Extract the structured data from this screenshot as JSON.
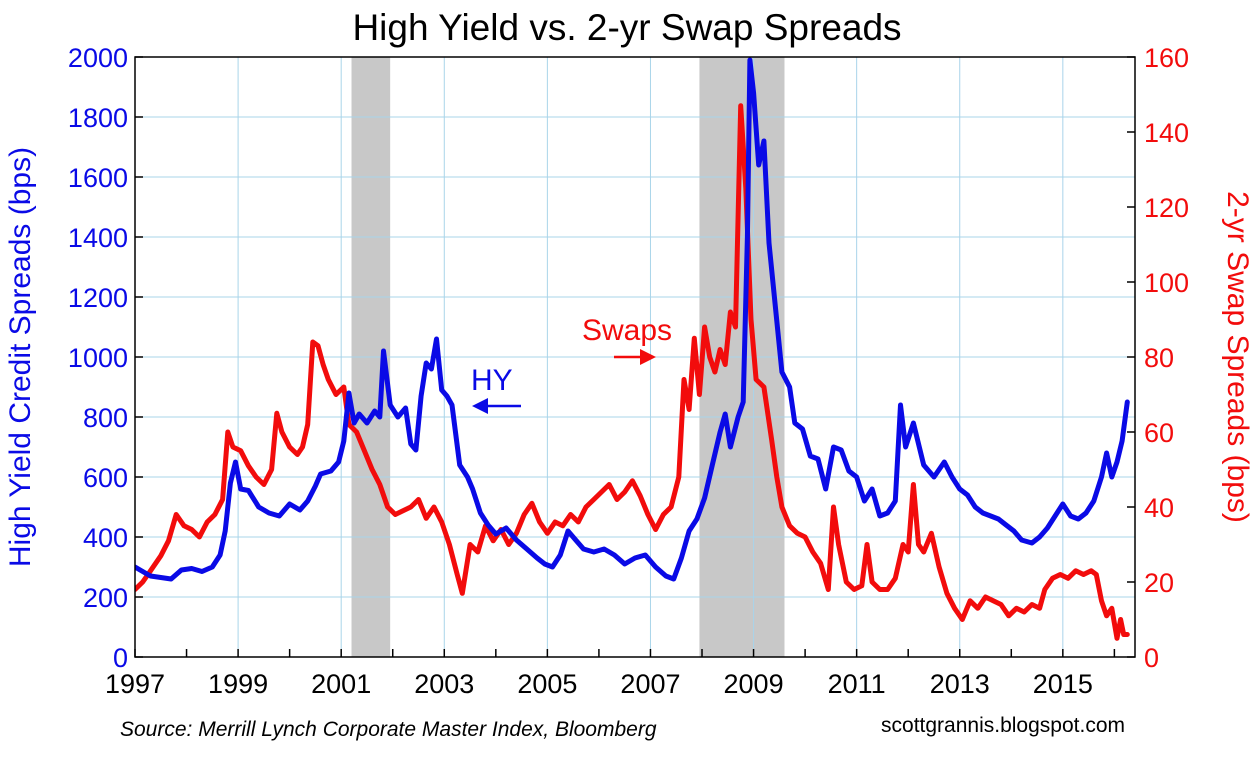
{
  "chart_data": {
    "type": "line",
    "title": "High Yield vs. 2-yr Swap Spreads",
    "y_left_label": "High Yield Credit Spreads (bps)",
    "y_right_label": "2-yr Swap Spreads (bps)",
    "y_left_range": [
      0,
      2000
    ],
    "y_right_range": [
      0,
      160
    ],
    "y_left_ticks": [
      "0",
      "200",
      "400",
      "600",
      "800",
      "1000",
      "1200",
      "1400",
      "1600",
      "1800",
      "2000"
    ],
    "y_right_ticks": [
      "0",
      "20",
      "40",
      "60",
      "80",
      "100",
      "120",
      "140",
      "160"
    ],
    "x_range": [
      1997,
      2016.4
    ],
    "x_ticks": [
      "1997",
      "1999",
      "2001",
      "2003",
      "2005",
      "2007",
      "2009",
      "2011",
      "2013",
      "2015"
    ],
    "grid": true,
    "recessions": [
      [
        2001.2,
        2001.95
      ],
      [
        2007.95,
        2009.6
      ]
    ],
    "series": [
      {
        "name": "HY",
        "axis": "left",
        "color": "#0a0ae6",
        "points": [
          [
            1997.0,
            300
          ],
          [
            1997.15,
            285
          ],
          [
            1997.3,
            270
          ],
          [
            1997.5,
            265
          ],
          [
            1997.7,
            260
          ],
          [
            1997.9,
            290
          ],
          [
            1998.1,
            295
          ],
          [
            1998.3,
            285
          ],
          [
            1998.5,
            300
          ],
          [
            1998.65,
            340
          ],
          [
            1998.75,
            420
          ],
          [
            1998.85,
            580
          ],
          [
            1998.95,
            650
          ],
          [
            1999.05,
            560
          ],
          [
            1999.2,
            555
          ],
          [
            1999.4,
            500
          ],
          [
            1999.6,
            480
          ],
          [
            1999.8,
            470
          ],
          [
            2000.0,
            510
          ],
          [
            2000.2,
            490
          ],
          [
            2000.35,
            520
          ],
          [
            2000.5,
            570
          ],
          [
            2000.6,
            610
          ],
          [
            2000.8,
            620
          ],
          [
            2000.95,
            650
          ],
          [
            2001.05,
            720
          ],
          [
            2001.15,
            880
          ],
          [
            2001.25,
            780
          ],
          [
            2001.35,
            810
          ],
          [
            2001.5,
            780
          ],
          [
            2001.65,
            820
          ],
          [
            2001.75,
            800
          ],
          [
            2001.82,
            1020
          ],
          [
            2001.95,
            840
          ],
          [
            2002.1,
            800
          ],
          [
            2002.25,
            830
          ],
          [
            2002.35,
            710
          ],
          [
            2002.45,
            690
          ],
          [
            2002.55,
            870
          ],
          [
            2002.65,
            980
          ],
          [
            2002.75,
            960
          ],
          [
            2002.85,
            1060
          ],
          [
            2002.95,
            890
          ],
          [
            2003.05,
            870
          ],
          [
            2003.15,
            840
          ],
          [
            2003.3,
            640
          ],
          [
            2003.45,
            600
          ],
          [
            2003.55,
            560
          ],
          [
            2003.7,
            480
          ],
          [
            2003.85,
            440
          ],
          [
            2004.0,
            410
          ],
          [
            2004.2,
            430
          ],
          [
            2004.4,
            390
          ],
          [
            2004.6,
            360
          ],
          [
            2004.8,
            330
          ],
          [
            2004.95,
            310
          ],
          [
            2005.1,
            300
          ],
          [
            2005.25,
            340
          ],
          [
            2005.4,
            420
          ],
          [
            2005.55,
            390
          ],
          [
            2005.7,
            360
          ],
          [
            2005.9,
            350
          ],
          [
            2006.1,
            360
          ],
          [
            2006.3,
            340
          ],
          [
            2006.5,
            310
          ],
          [
            2006.7,
            330
          ],
          [
            2006.9,
            340
          ],
          [
            2007.1,
            300
          ],
          [
            2007.3,
            270
          ],
          [
            2007.45,
            260
          ],
          [
            2007.6,
            330
          ],
          [
            2007.75,
            420
          ],
          [
            2007.9,
            460
          ],
          [
            2008.05,
            530
          ],
          [
            2008.2,
            640
          ],
          [
            2008.35,
            750
          ],
          [
            2008.45,
            810
          ],
          [
            2008.55,
            700
          ],
          [
            2008.7,
            800
          ],
          [
            2008.8,
            850
          ],
          [
            2008.88,
            1400
          ],
          [
            2008.93,
            1990
          ],
          [
            2009.0,
            1880
          ],
          [
            2009.1,
            1640
          ],
          [
            2009.2,
            1720
          ],
          [
            2009.3,
            1380
          ],
          [
            2009.45,
            1120
          ],
          [
            2009.55,
            950
          ],
          [
            2009.7,
            900
          ],
          [
            2009.8,
            780
          ],
          [
            2009.95,
            760
          ],
          [
            2010.1,
            670
          ],
          [
            2010.25,
            660
          ],
          [
            2010.4,
            560
          ],
          [
            2010.55,
            700
          ],
          [
            2010.7,
            690
          ],
          [
            2010.85,
            620
          ],
          [
            2011.0,
            600
          ],
          [
            2011.15,
            520
          ],
          [
            2011.3,
            560
          ],
          [
            2011.45,
            470
          ],
          [
            2011.6,
            480
          ],
          [
            2011.75,
            520
          ],
          [
            2011.85,
            840
          ],
          [
            2011.95,
            700
          ],
          [
            2012.1,
            780
          ],
          [
            2012.3,
            640
          ],
          [
            2012.5,
            600
          ],
          [
            2012.7,
            650
          ],
          [
            2012.85,
            600
          ],
          [
            2013.0,
            560
          ],
          [
            2013.15,
            540
          ],
          [
            2013.3,
            500
          ],
          [
            2013.45,
            480
          ],
          [
            2013.6,
            470
          ],
          [
            2013.75,
            460
          ],
          [
            2013.9,
            440
          ],
          [
            2014.05,
            420
          ],
          [
            2014.2,
            390
          ],
          [
            2014.4,
            380
          ],
          [
            2014.55,
            400
          ],
          [
            2014.7,
            430
          ],
          [
            2014.85,
            470
          ],
          [
            2015.0,
            510
          ],
          [
            2015.15,
            470
          ],
          [
            2015.3,
            460
          ],
          [
            2015.45,
            480
          ],
          [
            2015.6,
            520
          ],
          [
            2015.75,
            600
          ],
          [
            2015.85,
            680
          ],
          [
            2015.95,
            600
          ],
          [
            2016.05,
            650
          ],
          [
            2016.15,
            720
          ],
          [
            2016.25,
            850
          ]
        ]
      },
      {
        "name": "Swaps",
        "axis": "right",
        "color": "#f20c0c",
        "points": [
          [
            1997.0,
            18
          ],
          [
            1997.15,
            20
          ],
          [
            1997.3,
            23
          ],
          [
            1997.5,
            27
          ],
          [
            1997.65,
            31
          ],
          [
            1997.8,
            38
          ],
          [
            1997.95,
            35
          ],
          [
            1998.1,
            34
          ],
          [
            1998.25,
            32
          ],
          [
            1998.4,
            36
          ],
          [
            1998.55,
            38
          ],
          [
            1998.7,
            42
          ],
          [
            1998.8,
            60
          ],
          [
            1998.9,
            56
          ],
          [
            1999.05,
            55
          ],
          [
            1999.2,
            51
          ],
          [
            1999.35,
            48
          ],
          [
            1999.5,
            46
          ],
          [
            1999.65,
            50
          ],
          [
            1999.75,
            65
          ],
          [
            1999.85,
            60
          ],
          [
            2000.0,
            56
          ],
          [
            2000.15,
            54
          ],
          [
            2000.25,
            56
          ],
          [
            2000.35,
            62
          ],
          [
            2000.45,
            84
          ],
          [
            2000.55,
            83
          ],
          [
            2000.65,
            78
          ],
          [
            2000.75,
            74
          ],
          [
            2000.9,
            70
          ],
          [
            2001.05,
            72
          ],
          [
            2001.15,
            62
          ],
          [
            2001.3,
            60
          ],
          [
            2001.45,
            55
          ],
          [
            2001.6,
            50
          ],
          [
            2001.75,
            46
          ],
          [
            2001.9,
            40
          ],
          [
            2002.05,
            38
          ],
          [
            2002.2,
            39
          ],
          [
            2002.35,
            40
          ],
          [
            2002.5,
            42
          ],
          [
            2002.65,
            37
          ],
          [
            2002.8,
            40
          ],
          [
            2002.95,
            36
          ],
          [
            2003.1,
            30
          ],
          [
            2003.25,
            22
          ],
          [
            2003.35,
            17
          ],
          [
            2003.5,
            30
          ],
          [
            2003.65,
            28
          ],
          [
            2003.8,
            35
          ],
          [
            2003.95,
            31
          ],
          [
            2004.1,
            34
          ],
          [
            2004.25,
            30
          ],
          [
            2004.4,
            33
          ],
          [
            2004.55,
            38
          ],
          [
            2004.7,
            41
          ],
          [
            2004.85,
            36
          ],
          [
            2005.0,
            33
          ],
          [
            2005.15,
            36
          ],
          [
            2005.3,
            35
          ],
          [
            2005.45,
            38
          ],
          [
            2005.6,
            36
          ],
          [
            2005.75,
            40
          ],
          [
            2005.9,
            42
          ],
          [
            2006.05,
            44
          ],
          [
            2006.2,
            46
          ],
          [
            2006.35,
            42
          ],
          [
            2006.5,
            44
          ],
          [
            2006.65,
            47
          ],
          [
            2006.8,
            43
          ],
          [
            2006.95,
            38
          ],
          [
            2007.1,
            34
          ],
          [
            2007.25,
            38
          ],
          [
            2007.4,
            40
          ],
          [
            2007.55,
            48
          ],
          [
            2007.65,
            74
          ],
          [
            2007.75,
            66
          ],
          [
            2007.85,
            85
          ],
          [
            2007.95,
            70
          ],
          [
            2008.05,
            88
          ],
          [
            2008.15,
            80
          ],
          [
            2008.25,
            76
          ],
          [
            2008.35,
            82
          ],
          [
            2008.45,
            78
          ],
          [
            2008.55,
            92
          ],
          [
            2008.65,
            88
          ],
          [
            2008.75,
            147
          ],
          [
            2008.85,
            125
          ],
          [
            2008.95,
            90
          ],
          [
            2009.05,
            74
          ],
          [
            2009.2,
            72
          ],
          [
            2009.35,
            58
          ],
          [
            2009.45,
            48
          ],
          [
            2009.55,
            40
          ],
          [
            2009.7,
            35
          ],
          [
            2009.85,
            33
          ],
          [
            2010.0,
            32
          ],
          [
            2010.15,
            28
          ],
          [
            2010.3,
            25
          ],
          [
            2010.45,
            18
          ],
          [
            2010.55,
            40
          ],
          [
            2010.65,
            30
          ],
          [
            2010.8,
            20
          ],
          [
            2010.95,
            18
          ],
          [
            2011.1,
            19
          ],
          [
            2011.2,
            30
          ],
          [
            2011.3,
            20
          ],
          [
            2011.45,
            18
          ],
          [
            2011.6,
            18
          ],
          [
            2011.75,
            21
          ],
          [
            2011.9,
            30
          ],
          [
            2012.0,
            28
          ],
          [
            2012.1,
            46
          ],
          [
            2012.2,
            30
          ],
          [
            2012.3,
            28
          ],
          [
            2012.45,
            33
          ],
          [
            2012.6,
            24
          ],
          [
            2012.75,
            17
          ],
          [
            2012.9,
            13
          ],
          [
            2013.05,
            10
          ],
          [
            2013.2,
            15
          ],
          [
            2013.35,
            13
          ],
          [
            2013.5,
            16
          ],
          [
            2013.65,
            15
          ],
          [
            2013.8,
            14
          ],
          [
            2013.95,
            11
          ],
          [
            2014.1,
            13
          ],
          [
            2014.25,
            12
          ],
          [
            2014.4,
            14
          ],
          [
            2014.55,
            13
          ],
          [
            2014.65,
            18
          ],
          [
            2014.8,
            21
          ],
          [
            2014.95,
            22
          ],
          [
            2015.1,
            21
          ],
          [
            2015.25,
            23
          ],
          [
            2015.4,
            22
          ],
          [
            2015.55,
            23
          ],
          [
            2015.65,
            22
          ],
          [
            2015.75,
            15
          ],
          [
            2015.85,
            11
          ],
          [
            2015.95,
            13
          ],
          [
            2016.0,
            9
          ],
          [
            2016.05,
            5
          ],
          [
            2016.12,
            10
          ],
          [
            2016.18,
            6
          ],
          [
            2016.25,
            6
          ]
        ]
      }
    ],
    "annotations": [
      {
        "text": "HY",
        "color": "#0a0ae6"
      },
      {
        "text": "Swaps",
        "color": "#f20c0c"
      }
    ],
    "source": "Source: Merrill Lynch Corporate Master Index, Bloomberg",
    "credit": "scottgrannis.blogspot.com"
  }
}
